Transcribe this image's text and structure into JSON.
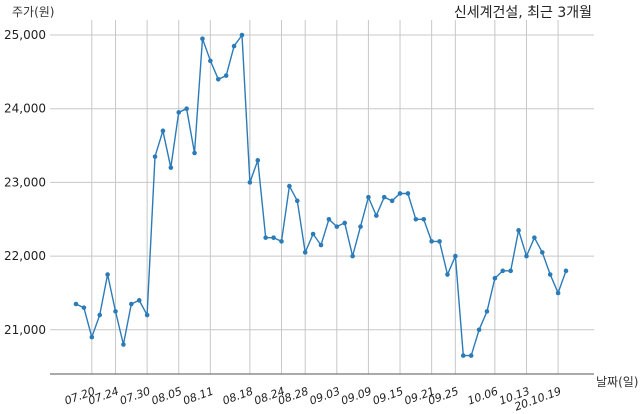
{
  "chart_data": {
    "type": "line",
    "title": "신세계건설, 최근 3개월",
    "ylabel": "주가(원)",
    "xlabel": "날짜(일)",
    "ylim": [
      20400,
      25150
    ],
    "yticks": [
      21000,
      22000,
      23000,
      24000,
      25000
    ],
    "ytick_labels": [
      "21,000",
      "22,000",
      "23,000",
      "24,000",
      "25,000"
    ],
    "xtick_labels": [
      "07.20",
      "07.24",
      "07.30",
      "08.05",
      "08.11",
      "08.18",
      "08.24",
      "08.28",
      "09.03",
      "09.09",
      "09.15",
      "09.21",
      "09.25",
      "10.06",
      "10.13",
      "20.10.19"
    ],
    "xtick_index": [
      2,
      5,
      9,
      13,
      17,
      22,
      26,
      29,
      33,
      37,
      41,
      45,
      48,
      53,
      57,
      61
    ],
    "grid": true,
    "line_color": "#2b7bb9",
    "series": [
      {
        "values": [
          21350,
          21300,
          20900,
          21200,
          21750,
          21250,
          20800,
          21350,
          21400,
          21200,
          23350,
          23700,
          23200,
          23950,
          24000,
          23400,
          24950,
          24650,
          24400,
          24450,
          24850,
          25000,
          23000,
          23300,
          22250,
          22250,
          22200,
          22950,
          22750,
          22050,
          22300,
          22150,
          22500,
          22400,
          22450,
          22000,
          22400,
          22800,
          22550,
          22800,
          22750,
          22850,
          22850,
          22500,
          22500,
          22200,
          22200,
          21750,
          22000,
          20650,
          20650,
          21000,
          21250,
          21700,
          21800,
          21800,
          22350,
          22000,
          22250,
          22050,
          21750,
          21500,
          21800
        ]
      }
    ]
  }
}
